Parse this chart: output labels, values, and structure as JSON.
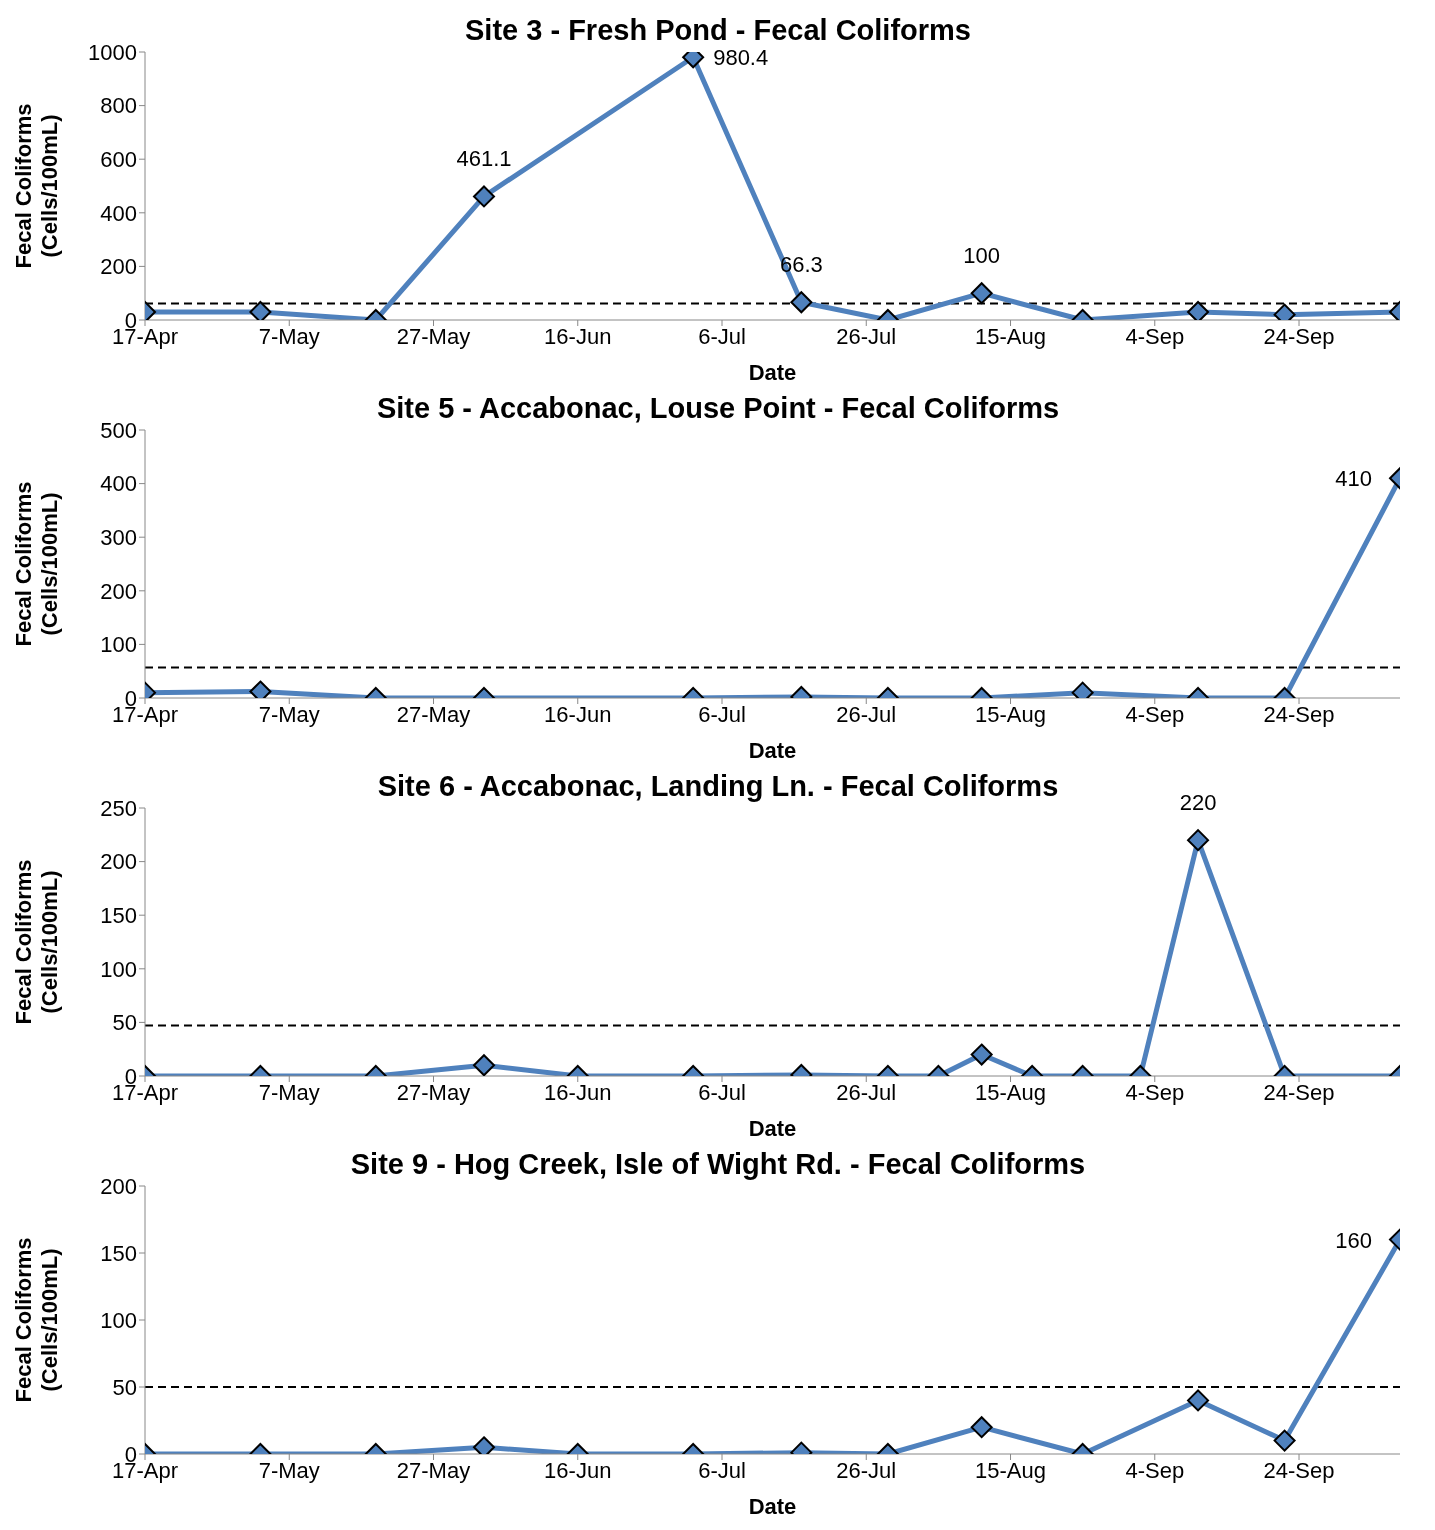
{
  "chart_data": [
    {
      "type": "line",
      "title": "Site 3 - Fresh Pond - Fecal Coliforms",
      "xlabel": "Date",
      "ylabel": "Fecal Coliforms\n(Cells/100mL)",
      "marker": "diamond",
      "line_style": "solid",
      "x": [
        "--04-17",
        "--05-03",
        "--05-19",
        "--06-03",
        "--07-02",
        "--07-17",
        "--07-29",
        "--08-11",
        "--08-25",
        "--09-10",
        "--09-22",
        "--10-08"
      ],
      "series": [
        {
          "color": "#4f81bd",
          "values": [
            30,
            30,
            0,
            461.1,
            980.4,
            66.3,
            0,
            100,
            0,
            30,
            20,
            30
          ],
          "value_labels": [
            null,
            null,
            null,
            "461.1",
            "980.4",
            "66.3",
            null,
            "100",
            null,
            null,
            null,
            null
          ]
        }
      ],
      "xlim": [
        "--04-17",
        "--10-08"
      ],
      "xticks": [
        {
          "value": "--04-17",
          "label": "17-Apr"
        },
        {
          "value": "--05-07",
          "label": "7-May"
        },
        {
          "value": "--05-27",
          "label": "27-May"
        },
        {
          "value": "--06-16",
          "label": "16-Jun"
        },
        {
          "value": "--07-06",
          "label": "6-Jul"
        },
        {
          "value": "--07-26",
          "label": "26-Jul"
        },
        {
          "value": "--08-15",
          "label": "15-Aug"
        },
        {
          "value": "--09-04",
          "label": "4-Sep"
        },
        {
          "value": "--09-24",
          "label": "24-Sep"
        }
      ],
      "ylim": [
        0,
        1000
      ],
      "yticks": [
        0,
        200,
        400,
        600,
        800,
        1000
      ],
      "ref_lines": [
        {
          "axis": "y",
          "value": 62,
          "line_style": "dashed",
          "color": "#000000"
        }
      ]
    },
    {
      "type": "line",
      "title": "Site 5 - Accabonac, Louse Point - Fecal Coliforms",
      "xlabel": "Date",
      "ylabel": "Fecal Coliforms\n(Cells/100mL)",
      "marker": "diamond",
      "line_style": "solid",
      "x": [
        "--04-17",
        "--05-03",
        "--05-19",
        "--06-03",
        "--07-02",
        "--07-17",
        "--07-29",
        "--08-11",
        "--08-25",
        "--09-10",
        "--09-22",
        "--10-08"
      ],
      "series": [
        {
          "color": "#4f81bd",
          "values": [
            10,
            12,
            0,
            0,
            0,
            2,
            0,
            0,
            10,
            0,
            0,
            410
          ],
          "value_labels": [
            null,
            null,
            null,
            null,
            null,
            null,
            null,
            null,
            null,
            null,
            null,
            "410"
          ]
        }
      ],
      "xlim": [
        "--04-17",
        "--10-08"
      ],
      "xticks": [
        {
          "value": "--04-17",
          "label": "17-Apr"
        },
        {
          "value": "--05-07",
          "label": "7-May"
        },
        {
          "value": "--05-27",
          "label": "27-May"
        },
        {
          "value": "--06-16",
          "label": "16-Jun"
        },
        {
          "value": "--07-06",
          "label": "6-Jul"
        },
        {
          "value": "--07-26",
          "label": "26-Jul"
        },
        {
          "value": "--08-15",
          "label": "15-Aug"
        },
        {
          "value": "--09-04",
          "label": "4-Sep"
        },
        {
          "value": "--09-24",
          "label": "24-Sep"
        }
      ],
      "ylim": [
        0,
        500
      ],
      "yticks": [
        0,
        100,
        200,
        300,
        400,
        500
      ],
      "ref_lines": [
        {
          "axis": "y",
          "value": 57,
          "line_style": "dashed",
          "color": "#000000"
        }
      ]
    },
    {
      "type": "line",
      "title": "Site 6 - Accabonac, Landing Ln. - Fecal Coliforms",
      "xlabel": "Date",
      "ylabel": "Fecal Coliforms\n(Cells/100mL)",
      "marker": "diamond",
      "line_style": "solid",
      "x": [
        "--04-17",
        "--05-03",
        "--05-19",
        "--06-03",
        "--06-16",
        "--07-02",
        "--07-17",
        "--07-29",
        "--08-05",
        "--08-11",
        "--08-18",
        "--08-25",
        "--09-02",
        "--09-10",
        "--09-22",
        "--10-08"
      ],
      "series": [
        {
          "color": "#4f81bd",
          "values": [
            0,
            0,
            0,
            10,
            0,
            0,
            1,
            0,
            0,
            20,
            0,
            0,
            0,
            220,
            0,
            0
          ],
          "value_labels": [
            null,
            null,
            null,
            null,
            null,
            null,
            null,
            null,
            null,
            null,
            null,
            null,
            null,
            "220",
            null,
            null
          ]
        }
      ],
      "xlim": [
        "--04-17",
        "--10-08"
      ],
      "xticks": [
        {
          "value": "--04-17",
          "label": "17-Apr"
        },
        {
          "value": "--05-07",
          "label": "7-May"
        },
        {
          "value": "--05-27",
          "label": "27-May"
        },
        {
          "value": "--06-16",
          "label": "16-Jun"
        },
        {
          "value": "--07-06",
          "label": "6-Jul"
        },
        {
          "value": "--07-26",
          "label": "26-Jul"
        },
        {
          "value": "--08-15",
          "label": "15-Aug"
        },
        {
          "value": "--09-04",
          "label": "4-Sep"
        },
        {
          "value": "--09-24",
          "label": "24-Sep"
        }
      ],
      "ylim": [
        0,
        250
      ],
      "yticks": [
        0,
        50,
        100,
        150,
        200,
        250
      ],
      "ref_lines": [
        {
          "axis": "y",
          "value": 47,
          "line_style": "dashed",
          "color": "#000000"
        }
      ]
    },
    {
      "type": "line",
      "title": "Site 9 - Hog Creek, Isle of Wight Rd. - Fecal Coliforms",
      "xlabel": "Date",
      "ylabel": "Fecal Coliforms\n(Cells/100mL)",
      "marker": "diamond",
      "line_style": "solid",
      "x": [
        "--04-17",
        "--05-03",
        "--05-19",
        "--06-03",
        "--06-16",
        "--07-02",
        "--07-17",
        "--07-29",
        "--08-11",
        "--08-25",
        "--09-10",
        "--09-22",
        "--10-08"
      ],
      "series": [
        {
          "color": "#4f81bd",
          "values": [
            0,
            0,
            0,
            5,
            0,
            0,
            1,
            0,
            20,
            0,
            40,
            10,
            160
          ],
          "value_labels": [
            null,
            null,
            null,
            null,
            null,
            null,
            null,
            null,
            null,
            null,
            null,
            null,
            "160"
          ]
        }
      ],
      "xlim": [
        "--04-17",
        "--10-08"
      ],
      "xticks": [
        {
          "value": "--04-17",
          "label": "17-Apr"
        },
        {
          "value": "--05-07",
          "label": "7-May"
        },
        {
          "value": "--05-27",
          "label": "27-May"
        },
        {
          "value": "--06-16",
          "label": "16-Jun"
        },
        {
          "value": "--07-06",
          "label": "6-Jul"
        },
        {
          "value": "--07-26",
          "label": "26-Jul"
        },
        {
          "value": "--08-15",
          "label": "15-Aug"
        },
        {
          "value": "--09-04",
          "label": "4-Sep"
        },
        {
          "value": "--09-24",
          "label": "24-Sep"
        }
      ],
      "ylim": [
        0,
        200
      ],
      "yticks": [
        0,
        50,
        100,
        150,
        200
      ],
      "ref_lines": [
        {
          "axis": "y",
          "value": 50,
          "line_style": "dashed",
          "color": "#000000"
        }
      ]
    }
  ]
}
